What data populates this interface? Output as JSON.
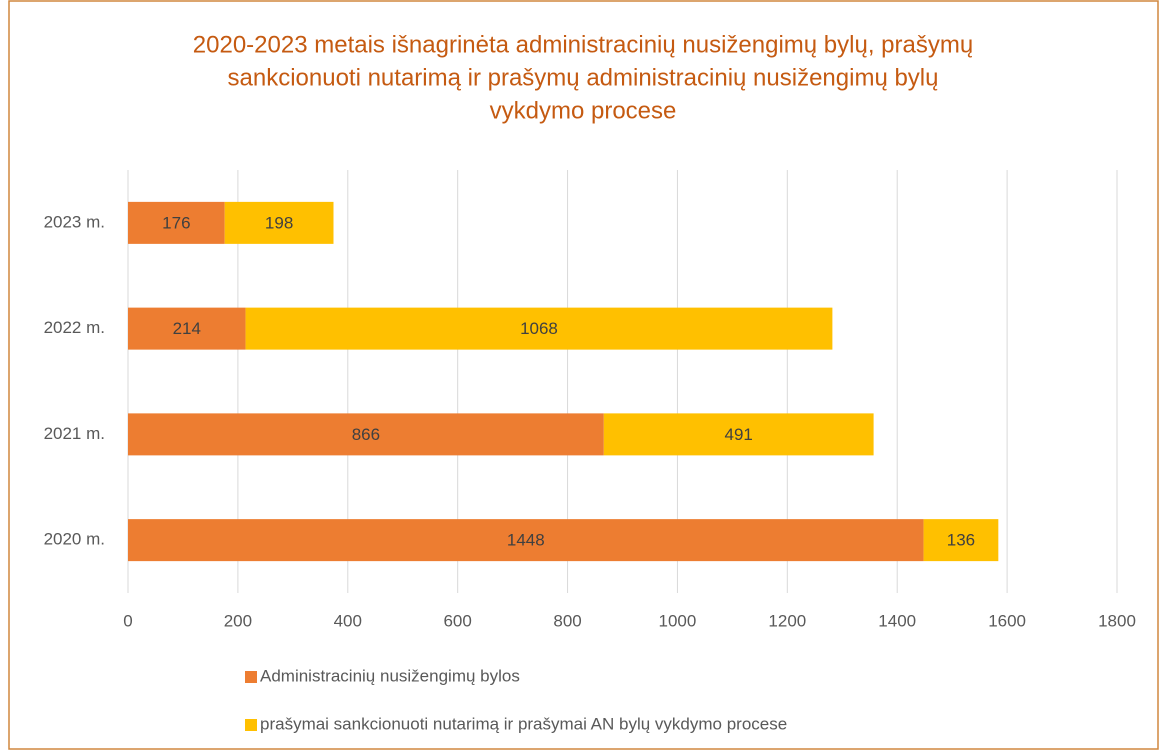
{
  "chart_data": {
    "type": "stacked_barh",
    "title": [
      "2020-2023 metais išnagrinėta administracinių nusižengimų bylų, prašymų",
      "sankcionuoti nutarimą ir prašymų administracinių nusižengimų bylų",
      "vykdymo procese"
    ],
    "categories": [
      "2020 m.",
      "2021 m.",
      "2022 m.",
      "2023 m."
    ],
    "series": [
      {
        "name": "Administracinių nusižengimų bylos",
        "color": "#ed7d31",
        "values": [
          1448,
          866,
          214,
          176
        ]
      },
      {
        "name": "prašymai sankcionuoti nutarimą ir prašymai AN bylų vykdymo procese",
        "color": "#ffc000",
        "values": [
          136,
          491,
          1068,
          198
        ]
      }
    ],
    "xlim": [
      0,
      1800
    ],
    "xticks": [
      0,
      200,
      400,
      600,
      800,
      1000,
      1200,
      1400,
      1600,
      1800
    ],
    "grid": true,
    "legend": "bottom"
  }
}
